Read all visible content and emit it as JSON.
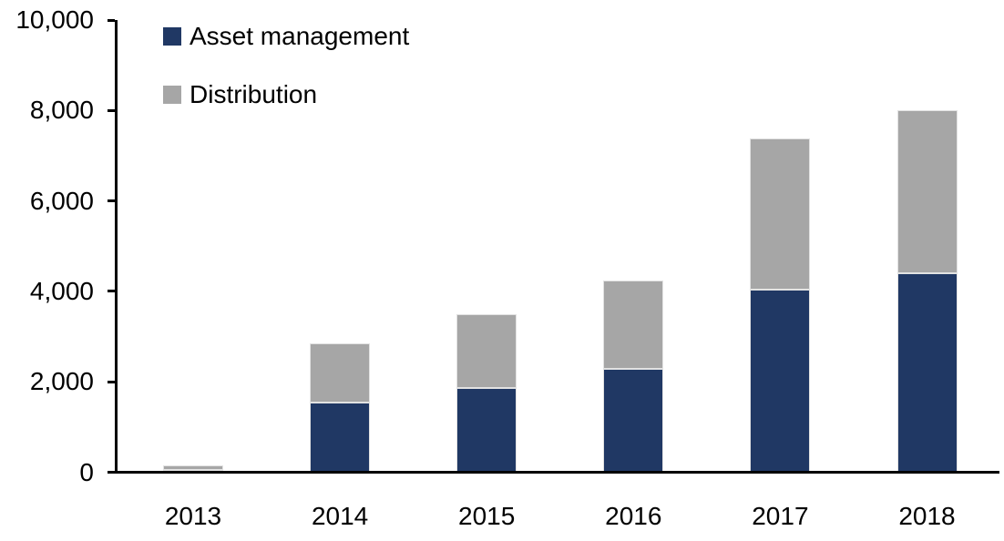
{
  "chart_data": {
    "type": "bar",
    "stacked": true,
    "title": "",
    "xlabel": "",
    "ylabel": "",
    "categories": [
      "2013",
      "2014",
      "2015",
      "2016",
      "2017",
      "2018"
    ],
    "series": [
      {
        "name": "Asset management",
        "color": "#203864",
        "values": [
          60,
          1540,
          1870,
          2290,
          4040,
          4410
        ]
      },
      {
        "name": "Distribution",
        "color": "#a6a6a6",
        "values": [
          100,
          1310,
          1630,
          1950,
          3340,
          3590
        ]
      }
    ],
    "totals": [
      160,
      2850,
      3500,
      4240,
      7380,
      8000
    ],
    "ylim": [
      0,
      10000
    ],
    "ytick_interval": 2000,
    "ytick_labels": [
      "0",
      "2,000",
      "4,000",
      "6,000",
      "8,000",
      "10,000"
    ],
    "grid": false,
    "legend_position": "top-left-inside",
    "axis_color": "#000000",
    "background": "#ffffff"
  }
}
